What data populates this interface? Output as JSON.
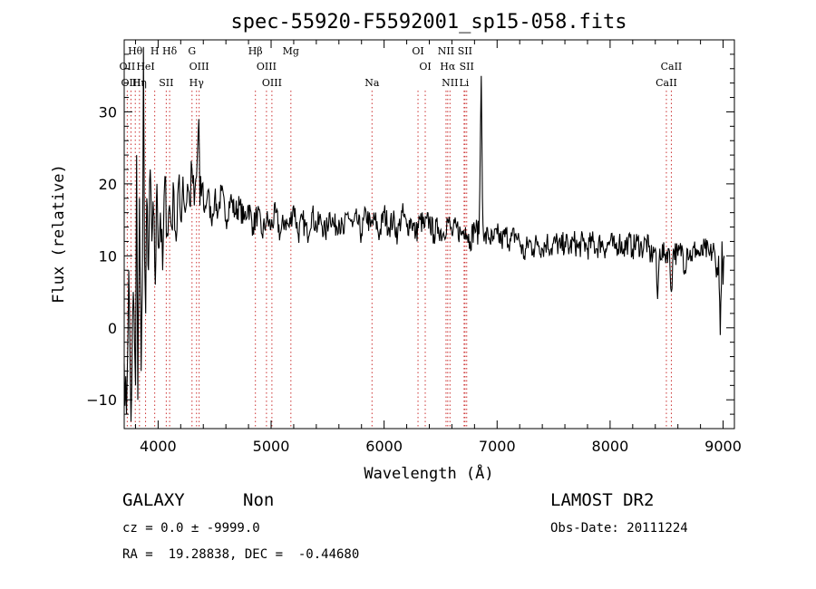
{
  "chart_data": {
    "type": "line",
    "title": "spec-55920-F5592001_sp15-058.fits",
    "xlabel": "Wavelength (Å)",
    "ylabel": "Flux (relative)",
    "xlim": [
      3700,
      9100
    ],
    "ylim": [
      -14,
      40
    ],
    "xticks": [
      4000,
      5000,
      6000,
      7000,
      8000,
      9000
    ],
    "yticks": [
      -10,
      0,
      10,
      20,
      30
    ],
    "grid": false,
    "series": [
      {
        "values": [
          [
            3700,
            -5
          ],
          [
            3720,
            -12
          ],
          [
            3740,
            8
          ],
          [
            3760,
            -13
          ],
          [
            3780,
            5
          ],
          [
            3800,
            -8
          ],
          [
            3810,
            24
          ],
          [
            3820,
            -10
          ],
          [
            3835,
            18
          ],
          [
            3850,
            -6
          ],
          [
            3860,
            5
          ],
          [
            3870,
            39
          ],
          [
            3880,
            10
          ],
          [
            3890,
            2
          ],
          [
            3900,
            18
          ],
          [
            3915,
            8
          ],
          [
            3930,
            22
          ],
          [
            3945,
            12
          ],
          [
            3960,
            16
          ],
          [
            3975,
            6
          ],
          [
            3990,
            20
          ],
          [
            4005,
            11
          ],
          [
            4020,
            16
          ],
          [
            4040,
            8
          ],
          [
            4060,
            21
          ],
          [
            4080,
            13
          ],
          [
            4100,
            17
          ],
          [
            4120,
            14
          ],
          [
            4140,
            19
          ],
          [
            4160,
            12
          ],
          [
            4180,
            20
          ],
          [
            4200,
            15
          ],
          [
            4220,
            21
          ],
          [
            4240,
            16
          ],
          [
            4260,
            20
          ],
          [
            4280,
            17
          ],
          [
            4300,
            22
          ],
          [
            4320,
            17
          ],
          [
            4340,
            21
          ],
          [
            4360,
            29
          ],
          [
            4370,
            17
          ],
          [
            4390,
            20
          ],
          [
            4410,
            16
          ],
          [
            4440,
            19
          ],
          [
            4470,
            15
          ],
          [
            4500,
            18
          ],
          [
            4530,
            16
          ],
          [
            4560,
            19
          ],
          [
            4600,
            15
          ],
          [
            4640,
            18
          ],
          [
            4680,
            16
          ],
          [
            4720,
            17
          ],
          [
            4760,
            15
          ],
          [
            4800,
            17
          ],
          [
            4840,
            14
          ],
          [
            4880,
            16
          ],
          [
            4920,
            13
          ],
          [
            4960,
            15
          ],
          [
            5000,
            14
          ],
          [
            5040,
            16
          ],
          [
            5080,
            13
          ],
          [
            5120,
            15
          ],
          [
            5160,
            14
          ],
          [
            5200,
            17
          ],
          [
            5240,
            13
          ],
          [
            5280,
            15
          ],
          [
            5320,
            13
          ],
          [
            5360,
            16
          ],
          [
            5400,
            14
          ],
          [
            5440,
            15
          ],
          [
            5480,
            13
          ],
          [
            5520,
            16
          ],
          [
            5560,
            14
          ],
          [
            5600,
            15
          ],
          [
            5640,
            13
          ],
          [
            5680,
            16
          ],
          [
            5720,
            14
          ],
          [
            5760,
            15
          ],
          [
            5800,
            13
          ],
          [
            5840,
            16
          ],
          [
            5880,
            14
          ],
          [
            5920,
            15
          ],
          [
            5960,
            13
          ],
          [
            6000,
            16
          ],
          [
            6040,
            14
          ],
          [
            6080,
            15
          ],
          [
            6120,
            13
          ],
          [
            6160,
            16
          ],
          [
            6200,
            14
          ],
          [
            6240,
            15
          ],
          [
            6280,
            13
          ],
          [
            6320,
            15
          ],
          [
            6360,
            14
          ],
          [
            6400,
            15
          ],
          [
            6440,
            13
          ],
          [
            6480,
            14
          ],
          [
            6520,
            13
          ],
          [
            6563,
            15
          ],
          [
            6600,
            13
          ],
          [
            6640,
            14
          ],
          [
            6680,
            13
          ],
          [
            6720,
            14
          ],
          [
            6760,
            12
          ],
          [
            6800,
            14
          ],
          [
            6840,
            13
          ],
          [
            6860,
            35
          ],
          [
            6870,
            18
          ],
          [
            6885,
            12
          ],
          [
            6920,
            13
          ],
          [
            6960,
            12
          ],
          [
            7000,
            13
          ],
          [
            7040,
            12
          ],
          [
            7080,
            13
          ],
          [
            7120,
            12
          ],
          [
            7160,
            13
          ],
          [
            7200,
            12
          ],
          [
            7240,
            10
          ],
          [
            7280,
            12
          ],
          [
            7320,
            11
          ],
          [
            7360,
            12
          ],
          [
            7400,
            11
          ],
          [
            7440,
            12
          ],
          [
            7480,
            11
          ],
          [
            7520,
            12
          ],
          [
            7560,
            11
          ],
          [
            7600,
            12
          ],
          [
            7640,
            11
          ],
          [
            7680,
            12
          ],
          [
            7720,
            11
          ],
          [
            7760,
            12
          ],
          [
            7800,
            11
          ],
          [
            7840,
            12
          ],
          [
            7880,
            11
          ],
          [
            7920,
            12
          ],
          [
            7960,
            11
          ],
          [
            8000,
            12
          ],
          [
            8040,
            11
          ],
          [
            8080,
            12
          ],
          [
            8120,
            11
          ],
          [
            8160,
            12
          ],
          [
            8200,
            11
          ],
          [
            8240,
            12
          ],
          [
            8280,
            11
          ],
          [
            8320,
            12
          ],
          [
            8360,
            10
          ],
          [
            8400,
            11
          ],
          [
            8420,
            4
          ],
          [
            8440,
            11
          ],
          [
            8480,
            10
          ],
          [
            8520,
            11
          ],
          [
            8542,
            5
          ],
          [
            8560,
            11
          ],
          [
            8600,
            10
          ],
          [
            8640,
            11
          ],
          [
            8662,
            8
          ],
          [
            8680,
            11
          ],
          [
            8720,
            10
          ],
          [
            8760,
            11
          ],
          [
            8800,
            10
          ],
          [
            8840,
            11
          ],
          [
            8880,
            10
          ],
          [
            8920,
            11
          ],
          [
            8940,
            7
          ],
          [
            8960,
            10
          ],
          [
            8975,
            -1
          ],
          [
            8990,
            12
          ],
          [
            9000,
            6
          ],
          [
            9010,
            10
          ]
        ]
      }
    ],
    "emission_lines": [
      {
        "name": "Hθ",
        "wavelength": 3798
      },
      {
        "name": "H",
        "wavelength": 3970
      },
      {
        "name": "Hδ",
        "wavelength": 4102
      },
      {
        "name": "G",
        "wavelength": 4300
      },
      {
        "name": "Hβ",
        "wavelength": 4861
      },
      {
        "name": "Mg",
        "wavelength": 5175
      },
      {
        "name": "OI",
        "wavelength": 6300
      },
      {
        "name": "NII",
        "wavelength": 6548
      },
      {
        "name": "SII",
        "wavelength": 6716
      },
      {
        "name": "OII",
        "wavelength": 3727
      },
      {
        "name": "HeI",
        "wavelength": 3889
      },
      {
        "name": "OIII",
        "wavelength": 4363
      },
      {
        "name": "OIII",
        "wavelength": 4959
      },
      {
        "name": "OI",
        "wavelength": 6364
      },
      {
        "name": "Hα",
        "wavelength": 6563
      },
      {
        "name": "SII",
        "wavelength": 6731
      },
      {
        "name": "CaII",
        "wavelength": 8542
      },
      {
        "name": "OIII",
        "wavelength": 3760
      },
      {
        "name": "Hη",
        "wavelength": 3835
      },
      {
        "name": "SII",
        "wavelength": 4072
      },
      {
        "name": "Hγ",
        "wavelength": 4340
      },
      {
        "name": "OIII",
        "wavelength": 5007
      },
      {
        "name": "Na",
        "wavelength": 5893
      },
      {
        "name": "NII",
        "wavelength": 6583
      },
      {
        "name": "Li",
        "wavelength": 6708
      },
      {
        "name": "CaII",
        "wavelength": 8498
      }
    ],
    "line_marker_color": "#cc3333",
    "series_color": "#000000"
  },
  "info": {
    "object_class": "GALAXY",
    "subclass": "Non",
    "survey": "LAMOST DR2",
    "cz": "cz = 0.0 ± -9999.0",
    "obs_date": "Obs-Date: 20111224",
    "coords": "RA =  19.28838, DEC =  -0.44680"
  }
}
